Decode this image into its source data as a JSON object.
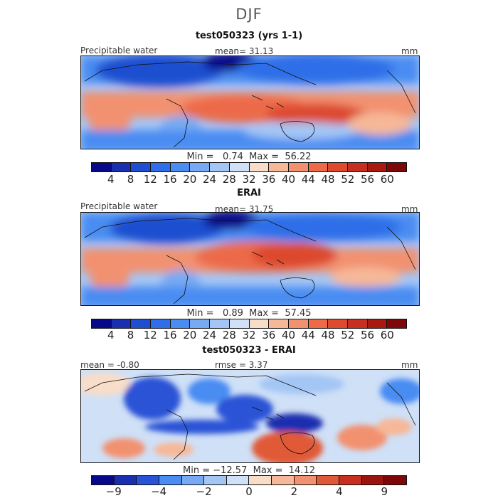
{
  "figure": {
    "season": "DJF"
  },
  "panels": [
    {
      "title": "test050323 (yrs 1-1)",
      "left_label": "Precipitable water",
      "center_label": "mean=  31.13",
      "right_label": "mm",
      "minmax": "Min =   0.74  Max =  56.22"
    },
    {
      "title": "ERAI",
      "left_label": "Precipitable water",
      "center_label": "mean=  31.75",
      "right_label": "mm",
      "minmax": "Min =   0.89  Max =  57.45"
    },
    {
      "title": "test050323 - ERAI",
      "left_label": "mean =  -0.80",
      "center_label": "rmse =    3.37",
      "right_label": "mm",
      "minmax": "Min = −12.57  Max =  14.12"
    }
  ],
  "colorbars": {
    "field": {
      "colors": [
        "#08088a",
        "#1a2fb0",
        "#1f4fd0",
        "#2f6ee8",
        "#4a8cf2",
        "#77aaf3",
        "#a4c6f5",
        "#cfe0f7",
        "#f8ddc9",
        "#f6b898",
        "#f29170",
        "#ec6a48",
        "#dd4a2e",
        "#c73020",
        "#a8190f",
        "#7e0808"
      ],
      "labels": [
        "4",
        "8",
        "12",
        "16",
        "20",
        "24",
        "28",
        "32",
        "36",
        "40",
        "44",
        "48",
        "52",
        "56",
        "60"
      ]
    },
    "diff": {
      "colors": [
        "#08088a",
        "#1a2fb0",
        "#2a52d6",
        "#4a8cf2",
        "#77aaf3",
        "#a4c6f5",
        "#cfe0f7",
        "#f8ddc9",
        "#f6b898",
        "#f29170",
        "#e05a38",
        "#c73020",
        "#9a1410",
        "#7e0808"
      ],
      "labels": [
        "−9",
        "−4",
        "−2",
        "0",
        "2",
        "4",
        "9"
      ]
    }
  }
}
